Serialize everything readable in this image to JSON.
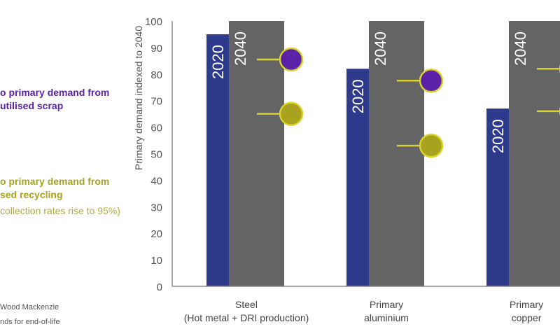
{
  "legend": {
    "scrap_line1": "o primary demand from",
    "scrap_line2": "utilised scrap",
    "recycling_line1": "o primary demand from",
    "recycling_line2": "sed recycling",
    "recycling_note": "collection rates rise to 95%)"
  },
  "footer": {
    "source": "Wood Mackenzie",
    "note": "nds for end-of-life"
  },
  "chart_data": {
    "type": "bar",
    "ylabel": "Primary demand indexed  to 2040",
    "ylim": [
      0,
      100
    ],
    "yticks": [
      0,
      10,
      20,
      30,
      40,
      50,
      60,
      70,
      80,
      90,
      100
    ],
    "grid": false,
    "categories": [
      {
        "line1": "Steel",
        "line2": "(Hot metal + DRI production)"
      },
      {
        "line1": "Primary",
        "line2": "aluminium"
      },
      {
        "line1": "Primary",
        "line2": "copper"
      }
    ],
    "series": [
      {
        "name": "2020",
        "color": "#2e3a8c",
        "values": [
          95,
          82,
          67
        ]
      },
      {
        "name": "2040",
        "color": "#646464",
        "values": [
          100,
          100,
          100
        ]
      }
    ],
    "markers": [
      {
        "color": "#5b22a8",
        "values": [
          85.5,
          77.5,
          82
        ]
      },
      {
        "color": "#a8a21e",
        "values": [
          65,
          53,
          66
        ]
      }
    ],
    "marker_line_color": "#d8d22a"
  }
}
